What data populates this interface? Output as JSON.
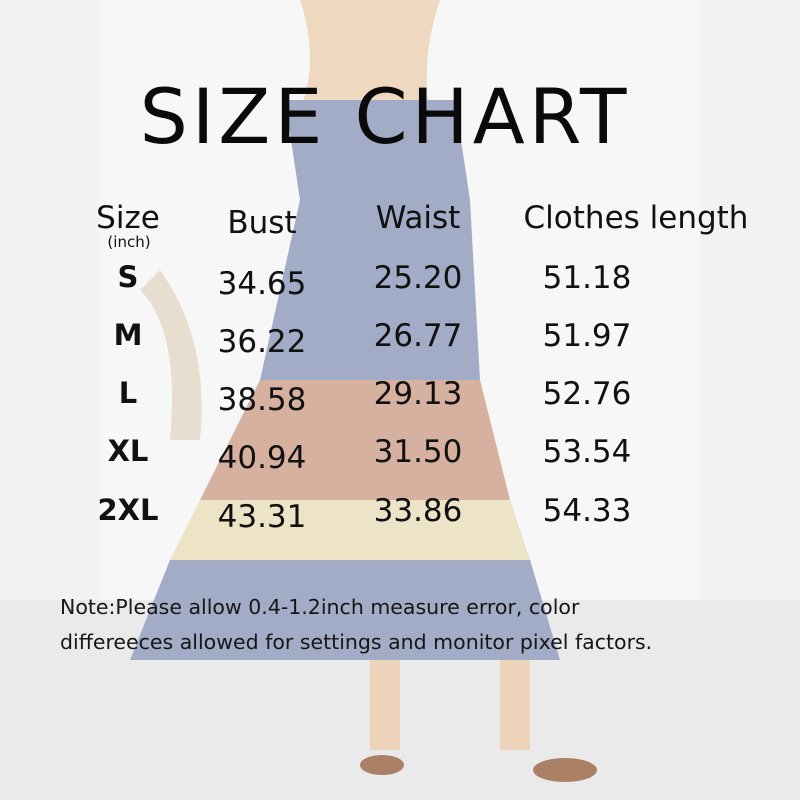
{
  "title": "SIZE CHART",
  "headers": {
    "size": "Size",
    "unit": "(inch)",
    "bust": "Bust",
    "waist": "Waist",
    "length": "Clothes length"
  },
  "rows": [
    {
      "size": "S",
      "bust": "34.65",
      "waist": "25.20",
      "length": "51.18"
    },
    {
      "size": "M",
      "bust": "36.22",
      "waist": "26.77",
      "length": "51.97"
    },
    {
      "size": "L",
      "bust": "38.58",
      "waist": "29.13",
      "length": "52.76"
    },
    {
      "size": "XL",
      "bust": "40.94",
      "waist": "31.50",
      "length": "53.54"
    },
    {
      "size": "2XL",
      "bust": "43.31",
      "waist": "33.86",
      "length": "54.33"
    }
  ],
  "note": {
    "line1": "Note:Please allow 0.4-1.2inch measure error, color",
    "line2": "differeeces allowed for settings and monitor pixel factors."
  },
  "colors": {
    "dress_blue": "#7e8db0",
    "dress_peach": "#c8947c",
    "dress_cream": "#e6d8b2"
  }
}
